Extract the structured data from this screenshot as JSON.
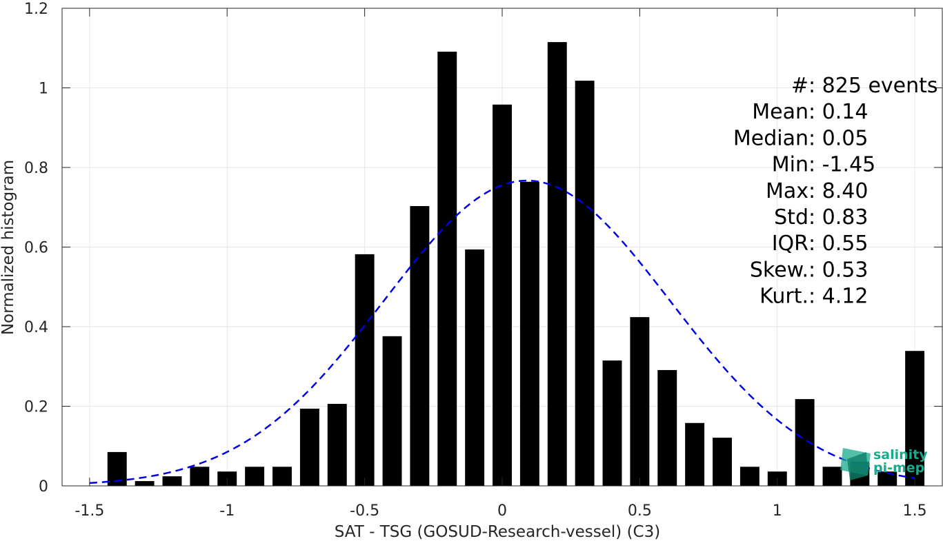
{
  "chart_data": {
    "type": "bar",
    "xlabel": "SAT - TSG (GOSUD-Research-vessel) (C3)",
    "ylabel": "Normalized histogram",
    "xlim": [
      -1.6,
      1.6
    ],
    "ylim": [
      0,
      1.2
    ],
    "xticks": [
      -1.5,
      -1,
      -0.5,
      0,
      0.5,
      1,
      1.5
    ],
    "xtick_labels": [
      "-1.5",
      "-1",
      "-0.5",
      "0",
      "0.5",
      "1",
      "1.5"
    ],
    "yticks": [
      0,
      0.2,
      0.4,
      0.6,
      0.8,
      1,
      1.2
    ],
    "ytick_labels": [
      "0",
      "0.2",
      "0.4",
      "0.6",
      "0.8",
      "1",
      "1.2"
    ],
    "grid": true,
    "bar_color": "#000000",
    "bar_width": 0.07,
    "bins": [
      {
        "x": -1.4,
        "y": 0.085
      },
      {
        "x": -1.3,
        "y": 0.012
      },
      {
        "x": -1.2,
        "y": 0.024
      },
      {
        "x": -1.1,
        "y": 0.048
      },
      {
        "x": -1.0,
        "y": 0.036
      },
      {
        "x": -0.9,
        "y": 0.048
      },
      {
        "x": -0.8,
        "y": 0.048
      },
      {
        "x": -0.7,
        "y": 0.194
      },
      {
        "x": -0.6,
        "y": 0.206
      },
      {
        "x": -0.5,
        "y": 0.582
      },
      {
        "x": -0.4,
        "y": 0.376
      },
      {
        "x": -0.3,
        "y": 0.703
      },
      {
        "x": -0.2,
        "y": 1.091
      },
      {
        "x": -0.1,
        "y": 0.594
      },
      {
        "x": 0.0,
        "y": 0.958
      },
      {
        "x": 0.1,
        "y": 0.764
      },
      {
        "x": 0.2,
        "y": 1.115
      },
      {
        "x": 0.3,
        "y": 1.018
      },
      {
        "x": 0.4,
        "y": 0.315
      },
      {
        "x": 0.5,
        "y": 0.424
      },
      {
        "x": 0.6,
        "y": 0.291
      },
      {
        "x": 0.7,
        "y": 0.158
      },
      {
        "x": 0.8,
        "y": 0.121
      },
      {
        "x": 0.9,
        "y": 0.048
      },
      {
        "x": 1.0,
        "y": 0.036
      },
      {
        "x": 1.1,
        "y": 0.218
      },
      {
        "x": 1.2,
        "y": 0.048
      },
      {
        "x": 1.3,
        "y": 0.061
      },
      {
        "x": 1.4,
        "y": 0.036
      },
      {
        "x": 1.5,
        "y": 0.339
      }
    ],
    "fit_curve": {
      "type": "gaussian",
      "style": "dashed",
      "color": "#0000e6",
      "mean": 0.09,
      "std": 0.52,
      "peak": 0.767,
      "x_range": [
        -1.5,
        1.5
      ]
    },
    "stats": [
      {
        "label": "#  ",
        "value": ": 825 events"
      },
      {
        "label": "Mean ",
        "value": ": 0.14"
      },
      {
        "label": "Median ",
        "value": ": 0.05"
      },
      {
        "label": "Min ",
        "value": ": -1.45"
      },
      {
        "label": "Max ",
        "value": ": 8.40"
      },
      {
        "label": "Std ",
        "value": ": 0.83"
      },
      {
        "label": "IQR ",
        "value": ": 0.55"
      },
      {
        "label": "Skew. ",
        "value": ": 0.53"
      },
      {
        "label": "Kurt. ",
        "value": ": 4.12"
      }
    ]
  },
  "logo": {
    "line1": "salinity",
    "line2": "pi-mep",
    "color": "#1aaa8c"
  }
}
